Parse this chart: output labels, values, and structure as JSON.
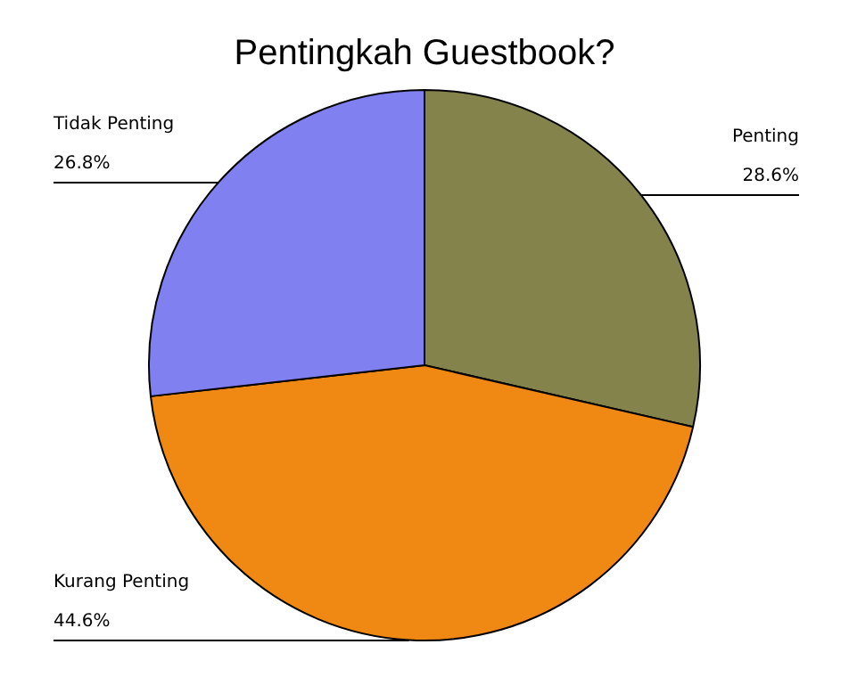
{
  "chart_data": {
    "type": "pie",
    "title": "Pentingkah Guestbook?",
    "categories": [
      "Penting",
      "Kurang Penting",
      "Tidak Penting"
    ],
    "values": [
      28.6,
      44.6,
      26.8
    ],
    "value_labels": [
      "28.6%",
      "44.6%",
      "26.8%"
    ],
    "colors": [
      "#83834b",
      "#f08814",
      "#8080f0"
    ],
    "legend": false
  }
}
